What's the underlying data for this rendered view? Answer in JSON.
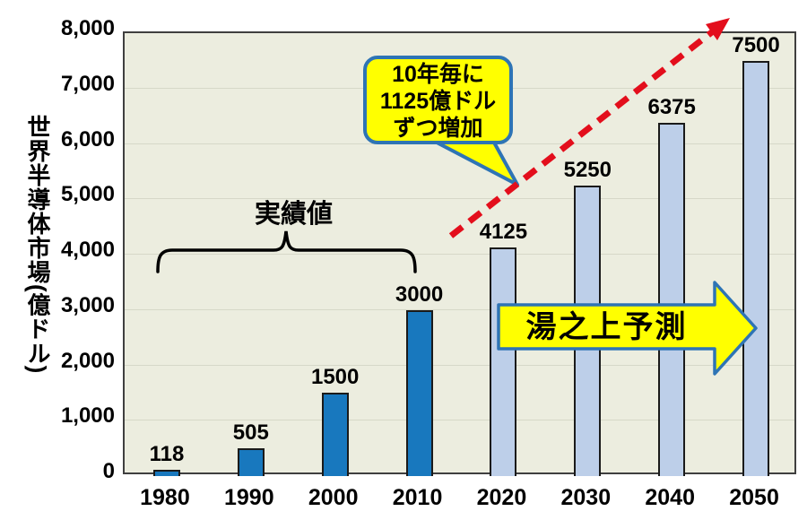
{
  "yaxis": {
    "title": "世界半導体市場(億ドル)",
    "tick_values": [
      0,
      1000,
      2000,
      3000,
      4000,
      5000,
      6000,
      7000,
      8000
    ],
    "tick_labels": [
      "0",
      "1,000",
      "2,000",
      "3,000",
      "4,000",
      "5,000",
      "6,000",
      "7,000",
      "8,000"
    ]
  },
  "chart_data": {
    "type": "bar",
    "title": "",
    "xlabel": "",
    "ylabel": "世界半導体市場(億ドル)",
    "categories": [
      "1980",
      "1990",
      "2000",
      "2010",
      "2020",
      "2030",
      "2040",
      "2050"
    ],
    "values": [
      118,
      505,
      1500,
      3000,
      4125,
      5250,
      6375,
      7500
    ],
    "bar_labels": [
      "118",
      "505",
      "1500",
      "3000",
      "4125",
      "5250",
      "6375",
      "7500"
    ],
    "groups": [
      "actual",
      "actual",
      "actual",
      "actual",
      "forecast",
      "forecast",
      "forecast",
      "forecast"
    ],
    "group_names": {
      "actual": "実績値",
      "forecast": "湯之上予測"
    },
    "ylim": [
      0,
      8000
    ],
    "grid": true,
    "legend": "none"
  },
  "annotations": {
    "actual_brace_label": "実績値",
    "actual_brace_span": [
      "1980",
      "2010"
    ],
    "callout_lines": [
      "10年毎に",
      "1125億ドル",
      "ずつ増加"
    ],
    "callout_text": "10年毎に1125億ドルずつ増加",
    "forecast_arrow_label": "湯之上予測"
  },
  "colors": {
    "actual_bar": "#1878BE",
    "forecast_bar": "#BDCFE9",
    "bar_border": "#1a1a1a",
    "plot_bg": "#ECEDDF",
    "gridline": "#D6D8C8",
    "callout_fill": "#FFFF00",
    "callout_border": "#2E74B5",
    "trend_arrow": "#E30E1C",
    "text": "#000000"
  }
}
